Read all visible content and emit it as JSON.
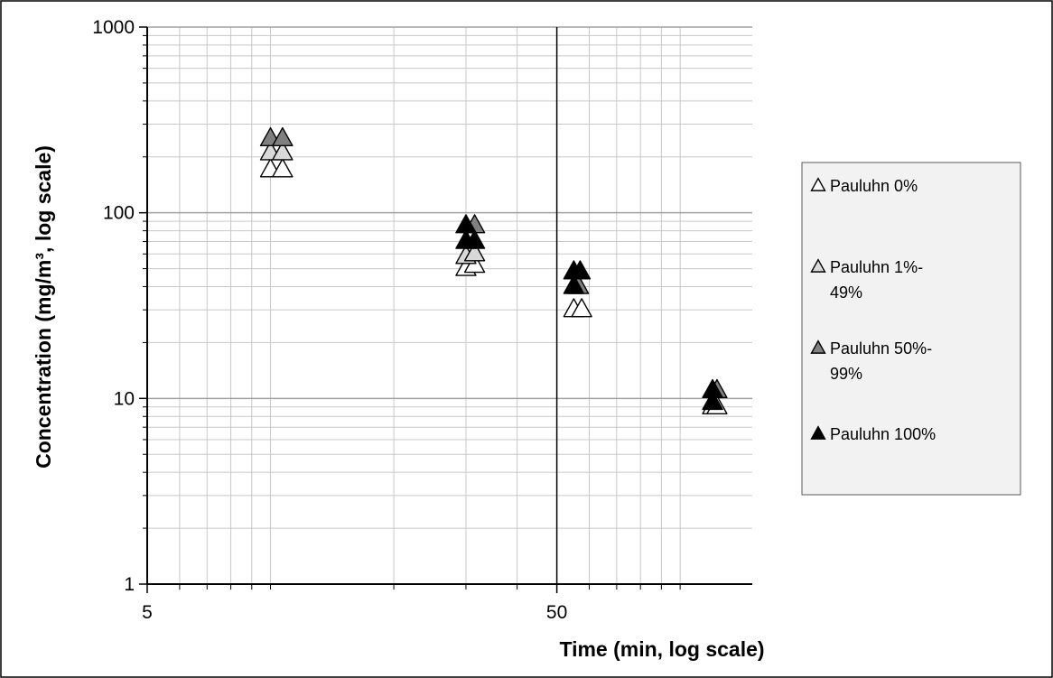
{
  "chart_data": {
    "type": "scatter",
    "title": "",
    "xlabel": "Time (min, log scale)",
    "ylabel": "Concentration (mg/m³, log scale)",
    "x_scale": "log",
    "y_scale": "log",
    "xlim": [
      5,
      150
    ],
    "ylim": [
      1,
      1000
    ],
    "x_ticks": [
      5,
      50
    ],
    "x_tick_labels": [
      "5",
      "50"
    ],
    "y_ticks": [
      1,
      10,
      100,
      1000
    ],
    "y_tick_labels": [
      "1",
      "10",
      "100",
      "1000"
    ],
    "x_reference_line": 50,
    "grid": true,
    "legend_position": "right",
    "colors": {
      "Pauluhn 0%": "#ffffff",
      "Pauluhn 1%-49%": "#d9d9d9",
      "Pauluhn 50%-99%": "#808080",
      "Pauluhn 100%": "#000000"
    },
    "series": [
      {
        "name": "Pauluhn 0%",
        "legend_lines": [
          "Pauluhn 0%"
        ],
        "marker": "triangle",
        "points": [
          [
            10,
            170
          ],
          [
            10.7,
            170
          ],
          [
            30,
            50
          ],
          [
            31.5,
            52
          ],
          [
            55,
            30
          ],
          [
            57.5,
            30
          ],
          [
            120,
            9
          ],
          [
            123,
            9
          ]
        ]
      },
      {
        "name": "Pauluhn 1%-49%",
        "legend_lines": [
          "Pauluhn 1%-",
          "49%"
        ],
        "marker": "triangle",
        "points": [
          [
            10,
            210
          ],
          [
            10.7,
            210
          ],
          [
            30,
            58
          ],
          [
            31.5,
            60
          ]
        ]
      },
      {
        "name": "Pauluhn 50%-99%",
        "legend_lines": [
          "Pauluhn 50%-",
          "99%"
        ],
        "marker": "triangle",
        "points": [
          [
            10,
            250
          ],
          [
            10.7,
            250
          ],
          [
            31.5,
            85
          ],
          [
            56.5,
            40
          ],
          [
            123,
            11
          ]
        ]
      },
      {
        "name": "Pauluhn 100%",
        "legend_lines": [
          "Pauluhn 100%"
        ],
        "marker": "triangle",
        "points": [
          [
            30,
            85
          ],
          [
            30,
            70
          ],
          [
            31.5,
            70
          ],
          [
            55,
            40
          ],
          [
            55,
            48
          ],
          [
            57,
            48
          ],
          [
            120,
            9.5
          ],
          [
            120,
            11
          ]
        ]
      }
    ]
  }
}
